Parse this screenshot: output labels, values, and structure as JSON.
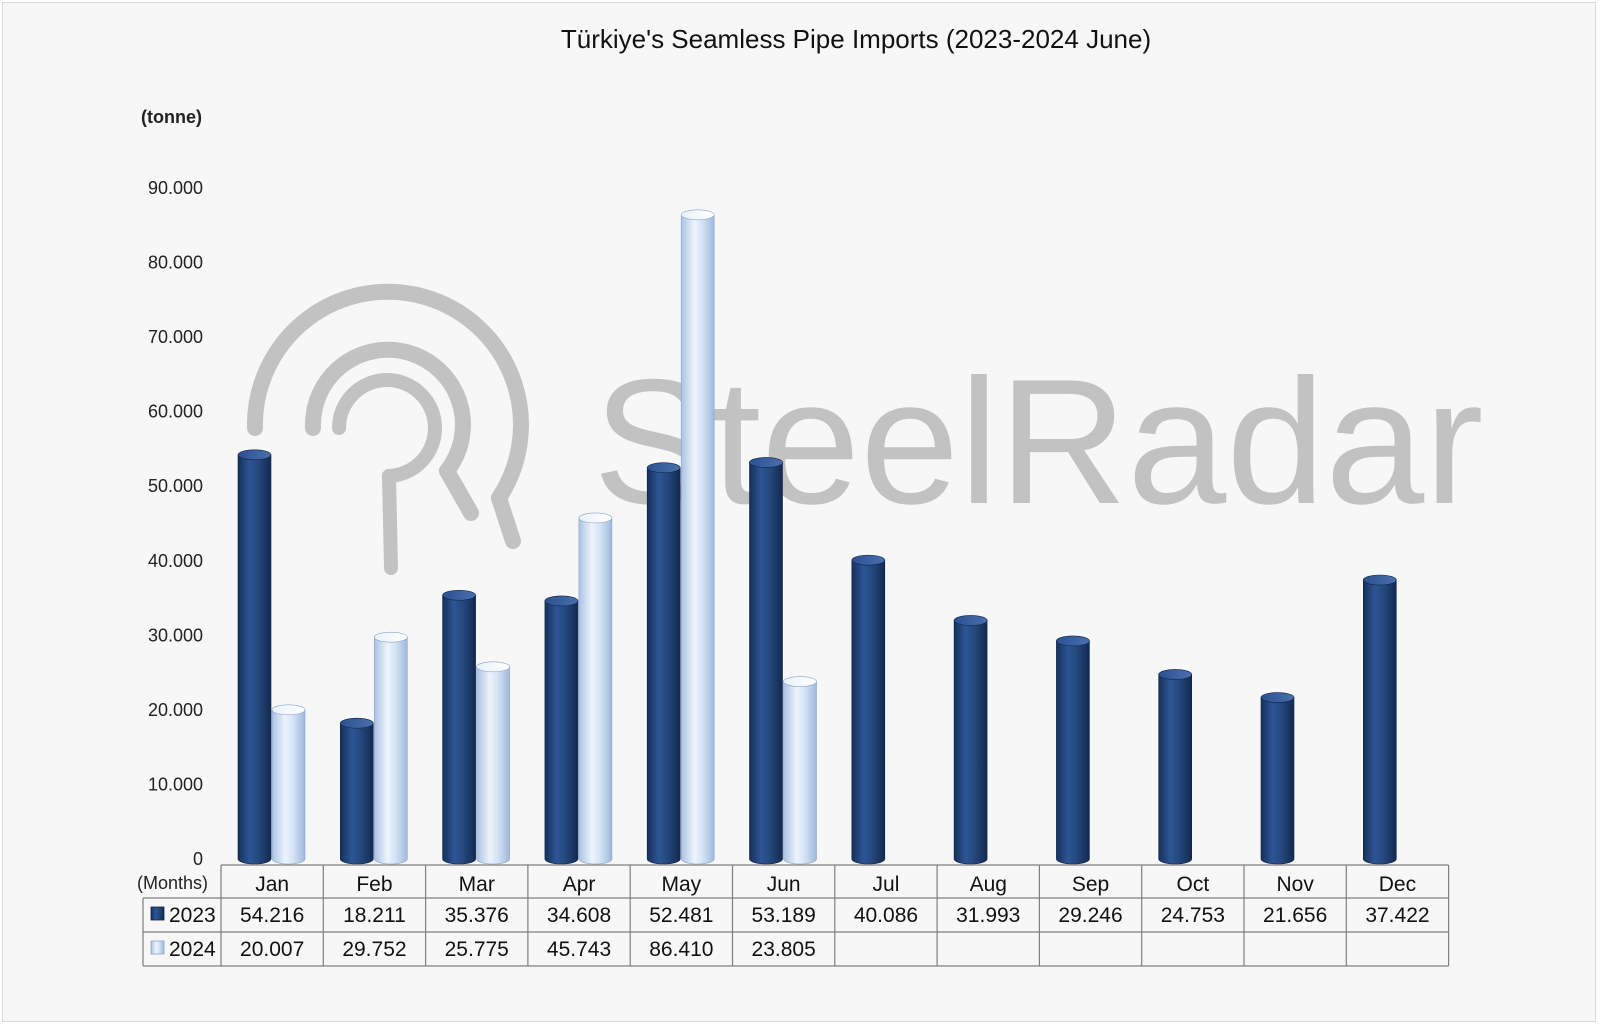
{
  "chart_data": {
    "type": "bar",
    "title": "Türkiye's Seamless Pipe Imports (2023-2024 June)",
    "unit_label": "(tonne)",
    "x_header": "(Months)",
    "categories": [
      "Jan",
      "Feb",
      "Mar",
      "Apr",
      "May",
      "Jun",
      "Jul",
      "Aug",
      "Sep",
      "Oct",
      "Nov",
      "Dec"
    ],
    "series": [
      {
        "name": "2023",
        "color": "#1f3f73",
        "values": [
          54216,
          18211,
          35376,
          34608,
          52481,
          53189,
          40086,
          31993,
          29246,
          24753,
          21656,
          37422
        ],
        "labels": [
          "54.216",
          "18.211",
          "35.376",
          "34.608",
          "52.481",
          "53.189",
          "40.086",
          "31.993",
          "29.246",
          "24.753",
          "21.656",
          "37.422"
        ]
      },
      {
        "name": "2024",
        "color": "#c6d9f0",
        "values": [
          20007,
          29752,
          25775,
          45743,
          86410,
          23805,
          null,
          null,
          null,
          null,
          null,
          null
        ],
        "labels": [
          "20.007",
          "29.752",
          "25.775",
          "45.743",
          "86.410",
          "23.805",
          "",
          "",
          "",
          "",
          "",
          ""
        ]
      }
    ],
    "y_ticks": [
      "0",
      "10.000",
      "20.000",
      "30.000",
      "40.000",
      "50.000",
      "60.000",
      "70.000",
      "80.000",
      "90.000"
    ],
    "ylim": [
      0,
      90000
    ],
    "grid": false,
    "legend": "data-table"
  },
  "watermark": {
    "text": "SteelRadar"
  }
}
